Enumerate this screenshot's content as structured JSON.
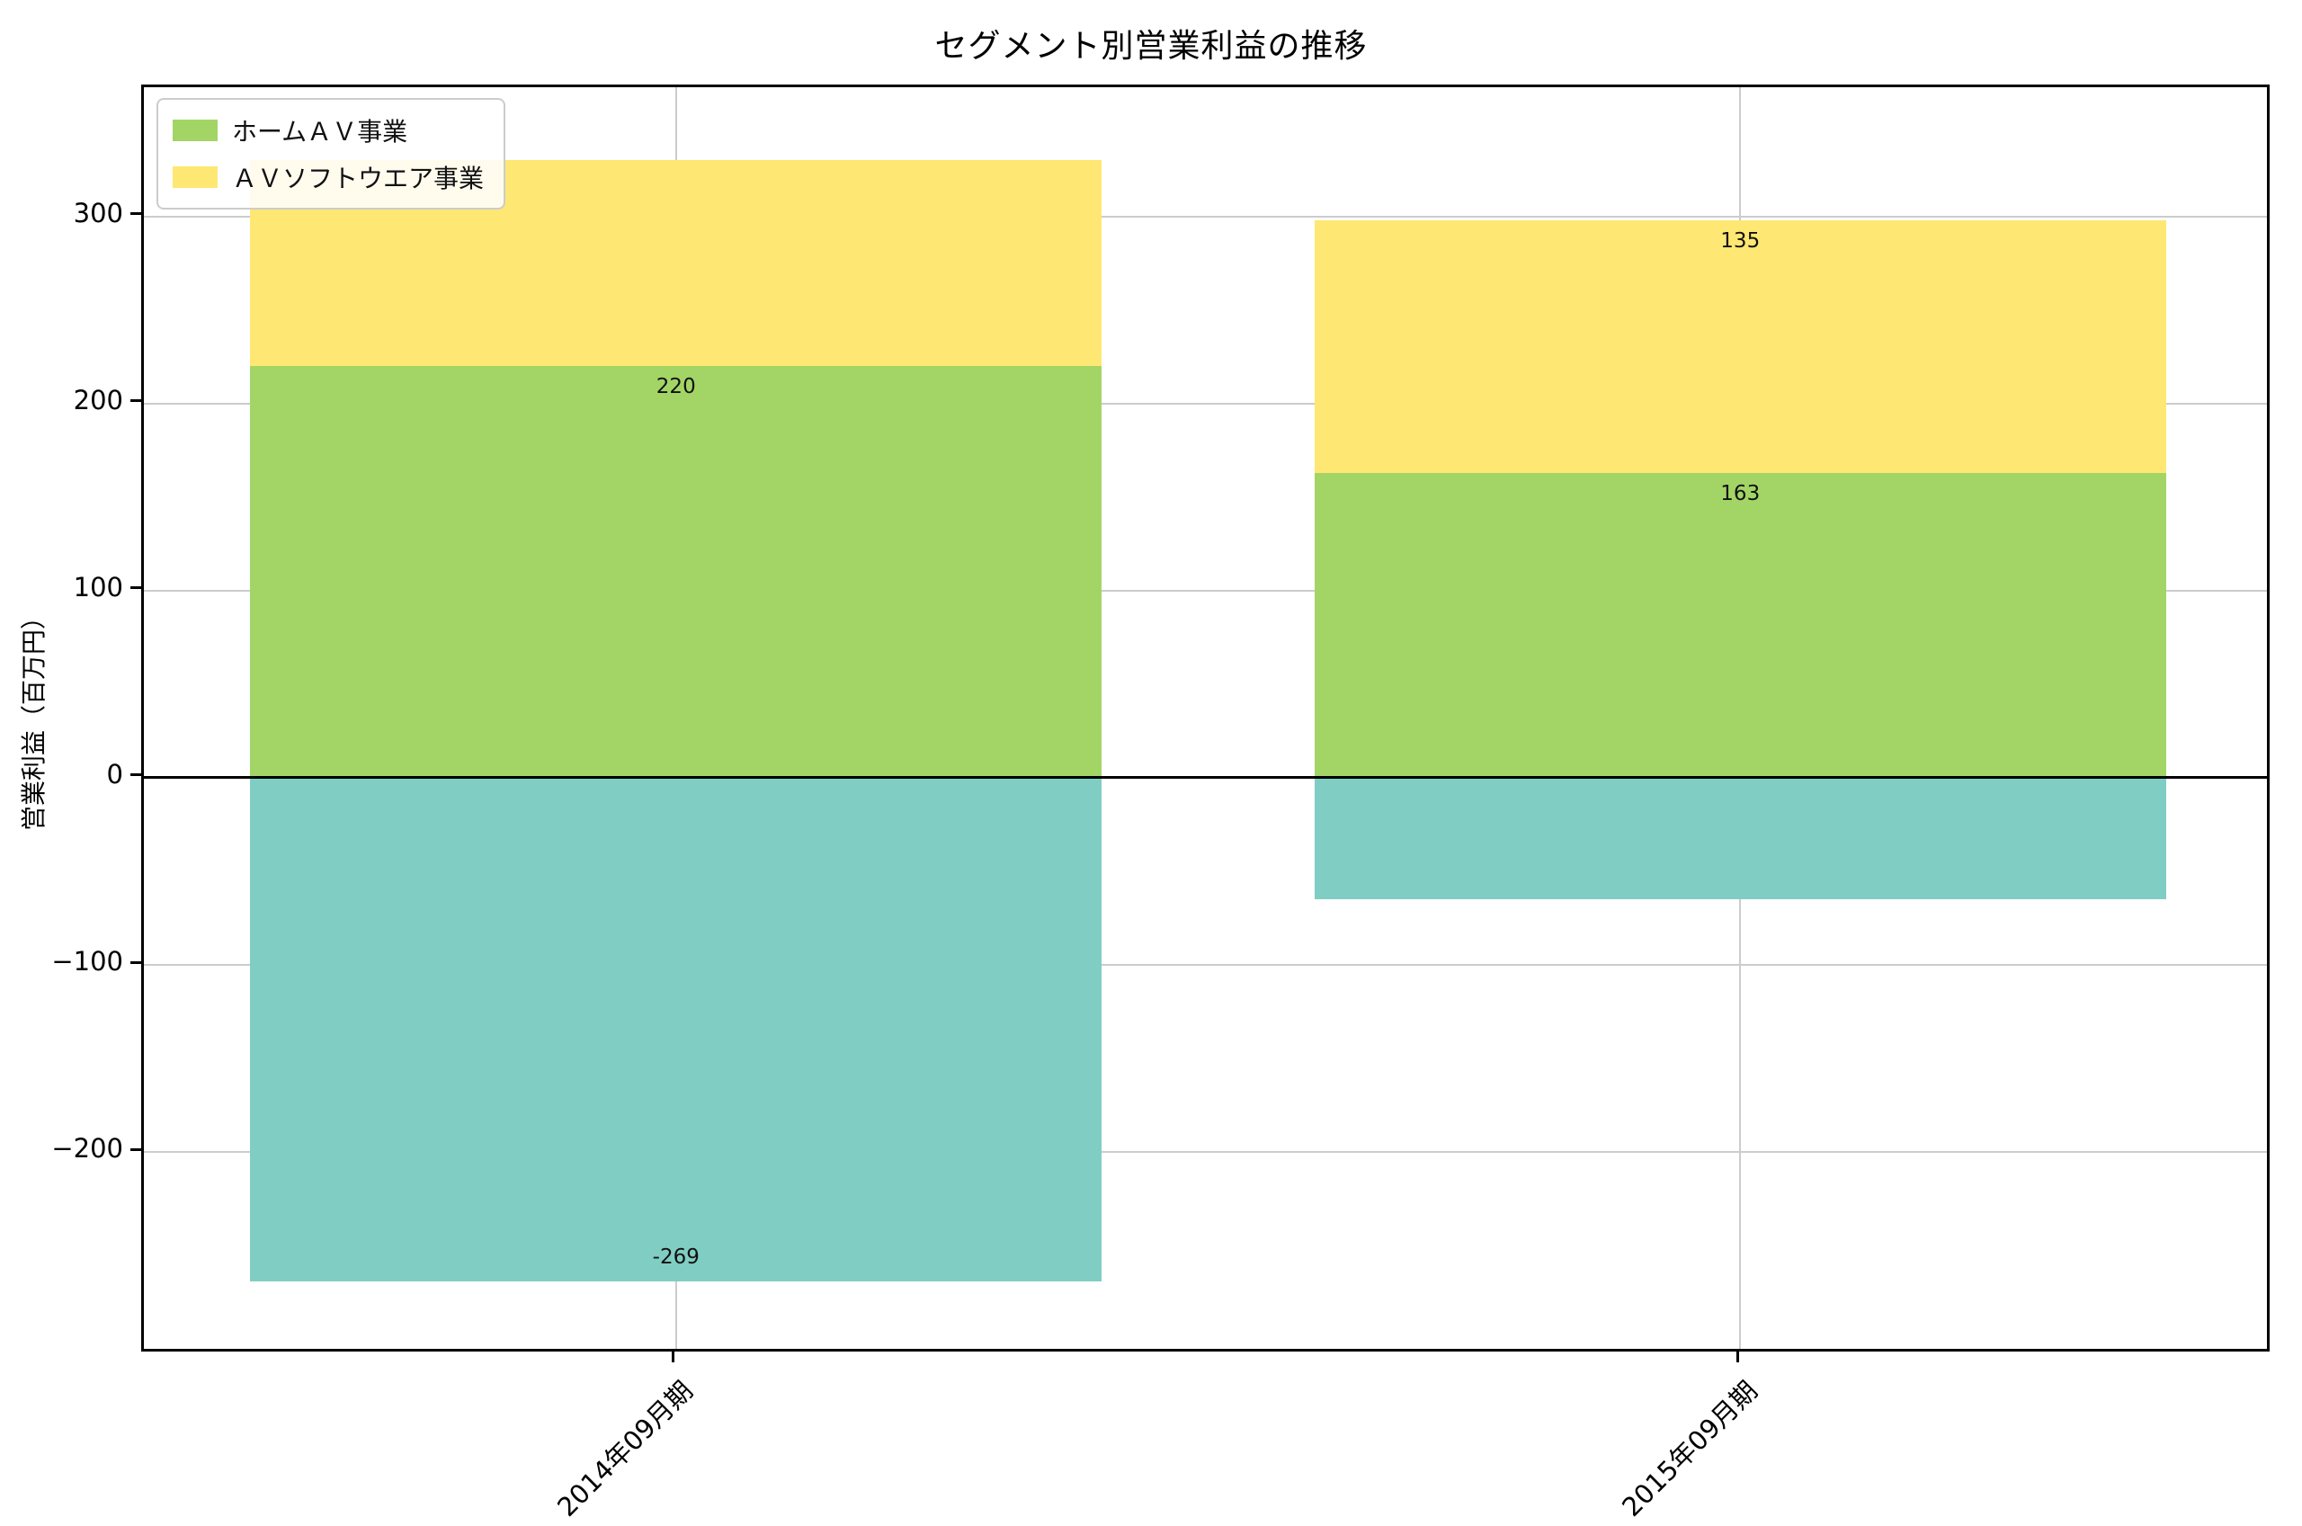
{
  "chart_data": {
    "type": "bar",
    "stacked": true,
    "title": "セグメント別営業利益の推移",
    "ylabel": "営業利益（百万円）",
    "xlabel": "",
    "categories": [
      "2014年09月期",
      "2015年09月期"
    ],
    "series": [
      {
        "name": "ホームＡＶ事業",
        "color": "#a3d566",
        "in_legend": true,
        "values": [
          220,
          163
        ],
        "labels": [
          "220",
          "163"
        ]
      },
      {
        "name": "ＡＶソフトウエア事業",
        "color": "#ffe773",
        "in_legend": true,
        "values": [
          110,
          135
        ],
        "labels": [
          "",
          "135"
        ]
      },
      {
        "name": "",
        "color": "#80cec3",
        "in_legend": false,
        "values": [
          -269,
          -65
        ],
        "labels": [
          "-269",
          ""
        ]
      }
    ],
    "yticks": [
      {
        "value": 300,
        "label": "300"
      },
      {
        "value": 200,
        "label": "200"
      },
      {
        "value": 100,
        "label": "100"
      },
      {
        "value": 0,
        "label": "0"
      },
      {
        "value": -100,
        "label": "−100"
      },
      {
        "value": -200,
        "label": "−200"
      }
    ],
    "ylim": [
      -308,
      369
    ],
    "bar_width_fraction": 0.4,
    "grid": true,
    "grid_color": "#cccccc",
    "zero_line": true,
    "legend_position": "upper left"
  }
}
